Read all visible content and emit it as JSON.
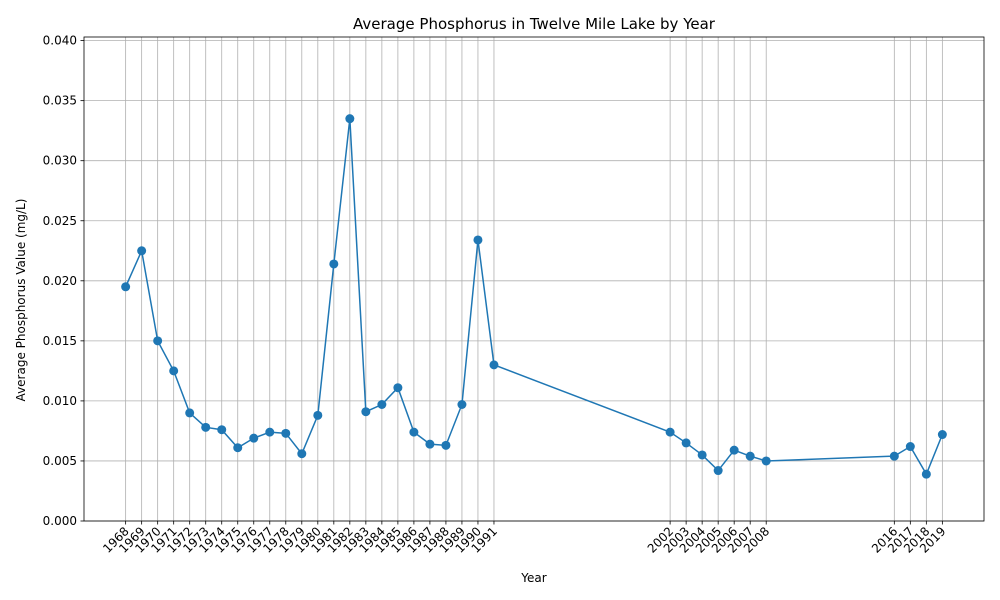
{
  "chart_data": {
    "type": "line",
    "title": "Average Phosphorus in Twelve Mile Lake by Year",
    "xlabel": "Year",
    "ylabel": "Average Phosphorus Value (mg/L)",
    "x": [
      1968,
      1969,
      1970,
      1971,
      1972,
      1973,
      1974,
      1975,
      1976,
      1977,
      1978,
      1979,
      1980,
      1981,
      1982,
      1983,
      1984,
      1985,
      1986,
      1987,
      1988,
      1989,
      1990,
      1991,
      2002,
      2003,
      2004,
      2005,
      2006,
      2007,
      2008,
      2016,
      2017,
      2018,
      2019
    ],
    "y": [
      0.0195,
      0.0225,
      0.015,
      0.0125,
      0.009,
      0.0078,
      0.0076,
      0.0061,
      0.0069,
      0.0074,
      0.0073,
      0.0056,
      0.0088,
      0.0214,
      0.0335,
      0.0091,
      0.0097,
      0.0111,
      0.0074,
      0.0064,
      0.0063,
      0.0097,
      0.0234,
      0.013,
      0.0074,
      0.0065,
      0.0055,
      0.0042,
      0.0059,
      0.0054,
      0.005,
      0.0054,
      0.0062,
      0.0039,
      0.0072
    ],
    "ylim": [
      0,
      0.0403
    ],
    "xlim": [
      1965.4,
      2021.6
    ],
    "yticks": [
      "0.000",
      "0.005",
      "0.010",
      "0.015",
      "0.020",
      "0.025",
      "0.030",
      "0.035",
      "0.040"
    ],
    "grid": true,
    "color": "#1f77b4"
  }
}
